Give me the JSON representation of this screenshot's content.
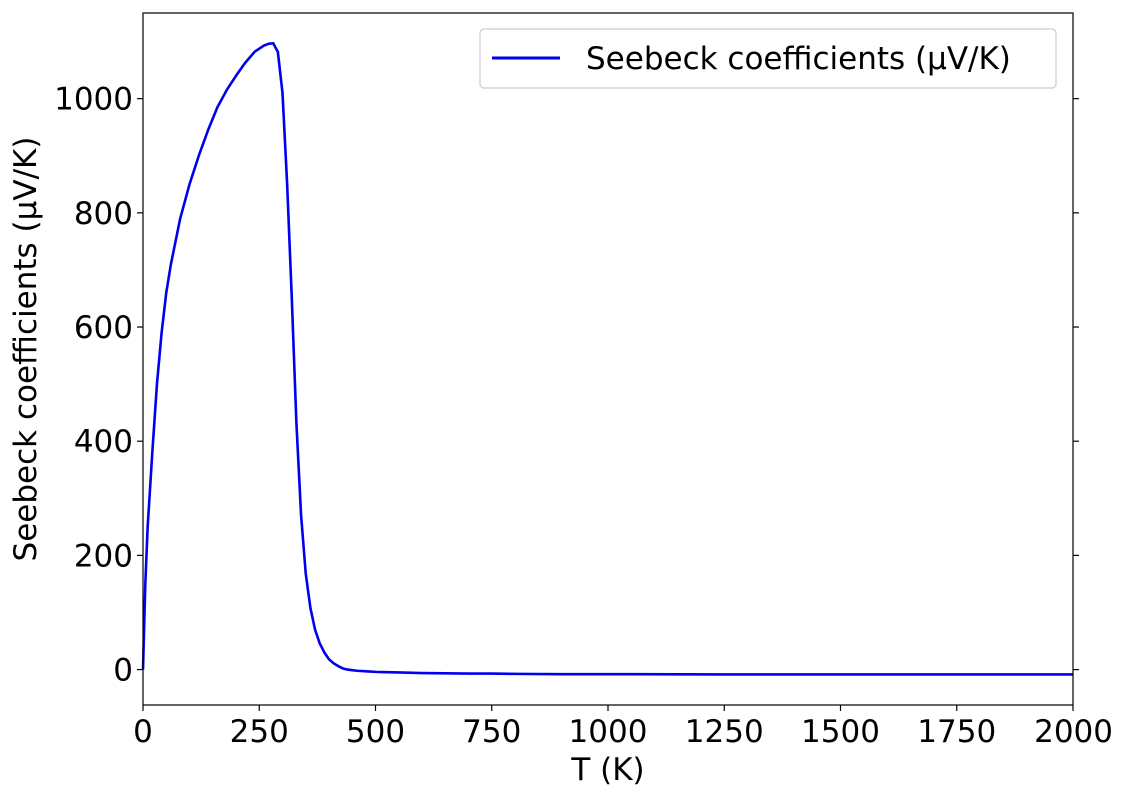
{
  "chart_data": {
    "type": "line",
    "xlabel": "T (K)",
    "ylabel": "Seebeck coefficients (µV/K)",
    "xlim": [
      0,
      2000
    ],
    "ylim": [
      -62,
      1150
    ],
    "xticks": [
      0,
      250,
      500,
      750,
      1000,
      1250,
      1500,
      1750,
      2000
    ],
    "yticks": [
      0,
      200,
      400,
      600,
      800,
      1000
    ],
    "xtick_labels": [
      "0",
      "250",
      "500",
      "750",
      "1000",
      "1250",
      "1500",
      "1750",
      "2000"
    ],
    "ytick_labels": [
      "0",
      "200",
      "400",
      "600",
      "800",
      "1000"
    ],
    "grid": false,
    "legend_position": "top-right",
    "series": [
      {
        "name": "Seebeck coefficients (µV/K)",
        "color": "#0000ee",
        "x": [
          0,
          5,
          10,
          20,
          30,
          40,
          50,
          60,
          80,
          100,
          120,
          140,
          160,
          180,
          200,
          220,
          240,
          260,
          270,
          280,
          290,
          300,
          310,
          320,
          330,
          340,
          350,
          360,
          370,
          380,
          390,
          400,
          410,
          420,
          430,
          440,
          450,
          460,
          480,
          500,
          550,
          600,
          650,
          700,
          750,
          800,
          900,
          1000,
          1250,
          1500,
          1750,
          2000
        ],
        "y": [
          0,
          150,
          250,
          380,
          500,
          590,
          660,
          710,
          790,
          850,
          900,
          945,
          985,
          1015,
          1040,
          1063,
          1082,
          1093,
          1096,
          1097,
          1082,
          1010,
          850,
          650,
          430,
          270,
          168,
          108,
          70,
          46,
          30,
          18,
          11,
          6,
          2,
          0,
          -1,
          -2,
          -3,
          -4,
          -5,
          -6,
          -6.5,
          -7,
          -7,
          -7.5,
          -8,
          -8,
          -8.5,
          -8.5,
          -8.5,
          -8.5
        ]
      }
    ]
  }
}
